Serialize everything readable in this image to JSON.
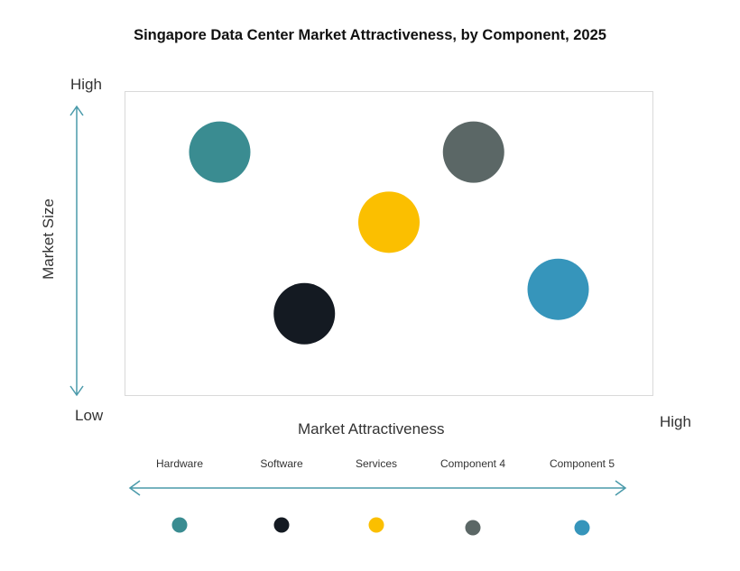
{
  "chart_data": {
    "type": "scatter",
    "title": "Singapore Data Center Market Attractiveness,  by Component, 2025",
    "xlabel": "Market Attractiveness",
    "ylabel": "Market Size",
    "x_low_label": "Low",
    "x_high_label": "High",
    "y_high_label": "High",
    "y_low_label": "Low",
    "scale": "relative (Low to High, 0 to 1)",
    "xlim": [
      0,
      1
    ],
    "ylim": [
      0,
      1
    ],
    "grid": false,
    "legend_position": "bottom",
    "series": [
      {
        "name": "Hardware",
        "x": 0.18,
        "y": 0.8,
        "color": "#3a8c91"
      },
      {
        "name": "Software",
        "x": 0.34,
        "y": 0.27,
        "color": "#141a22"
      },
      {
        "name": "Services",
        "x": 0.5,
        "y": 0.57,
        "color": "#fbbf00"
      },
      {
        "name": "Component 4",
        "x": 0.66,
        "y": 0.8,
        "color": "#5b6766"
      },
      {
        "name": "Component 5",
        "x": 0.82,
        "y": 0.35,
        "color": "#3695bb"
      }
    ],
    "arrow_color": "#4a9aaa"
  }
}
